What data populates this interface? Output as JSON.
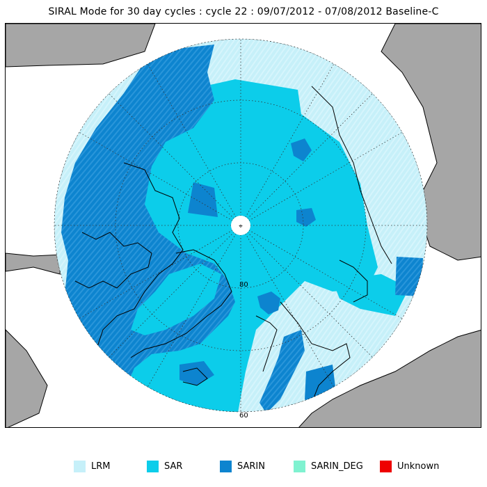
{
  "title": "SIRAL Mode for 30 day cycles : cycle 22 : 09/07/2012 - 07/08/2012 Baseline-C",
  "map": {
    "latitude_labels": [
      "80",
      "60"
    ],
    "pole_marker": "⌖",
    "colors": {
      "background": "#ffffff",
      "land": "#a6a6a6",
      "coastline": "#000000",
      "graticule": "#333333"
    }
  },
  "legend": [
    {
      "label": "LRM",
      "color": "#c6f0f9"
    },
    {
      "label": "SAR",
      "color": "#0ccdea"
    },
    {
      "label": "SARIN",
      "color": "#0d84cf"
    },
    {
      "label": "SARIN_DEG",
      "color": "#7ff2d0"
    },
    {
      "label": "Unknown",
      "color": "#ee0000"
    }
  ]
}
